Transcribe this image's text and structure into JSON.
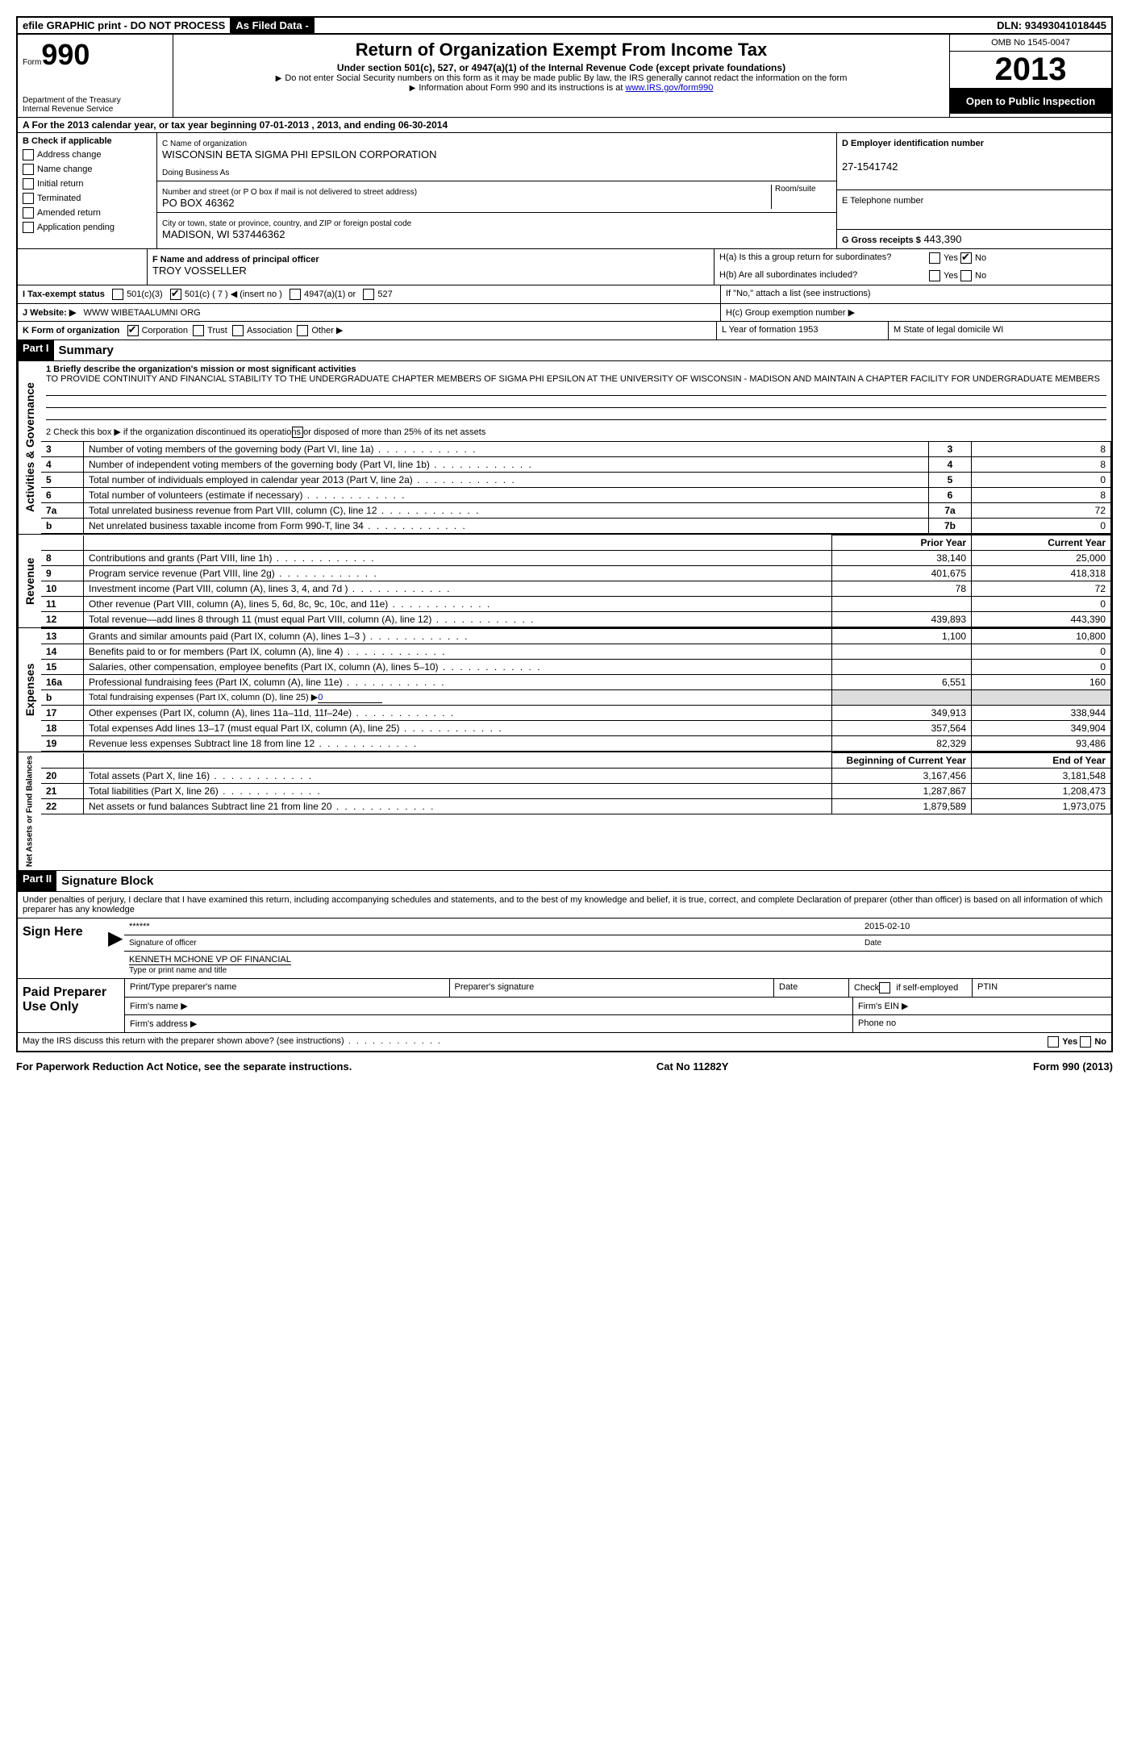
{
  "topbar": {
    "efile": "efile GRAPHIC print - DO NOT PROCESS",
    "asfiled": "As Filed Data -",
    "dln_label": "DLN:",
    "dln": "93493041018445"
  },
  "header": {
    "form_label": "Form",
    "form_no": "990",
    "dept1": "Department of the Treasury",
    "dept2": "Internal Revenue Service",
    "title": "Return of Organization Exempt From Income Tax",
    "sub1": "Under section 501(c), 527, or 4947(a)(1) of the Internal Revenue Code (except private foundations)",
    "sub2": "Do not enter Social Security numbers on this form as it may be made public  By law, the IRS generally cannot redact the information on the form",
    "sub3": "Information about Form 990 and its instructions is at ",
    "link": "www.IRS.gov/form990",
    "omb": "OMB No  1545-0047",
    "year": "2013",
    "open": "Open to Public Inspection"
  },
  "rowA": "A  For the 2013 calendar year, or tax year beginning 07-01-2013     , 2013, and ending 06-30-2014",
  "colB": {
    "label": "B  Check if applicable",
    "items": [
      "Address change",
      "Name change",
      "Initial return",
      "Terminated",
      "Amended return",
      "Application pending"
    ]
  },
  "colC": {
    "name_label": "C Name of organization",
    "name": "WISCONSIN BETA SIGMA PHI EPSILON CORPORATION",
    "dba": "Doing Business As",
    "addr_label": "Number and street (or P O  box if mail is not delivered to street address)",
    "room": "Room/suite",
    "addr": "PO BOX 46362",
    "city_label": "City or town, state or province, country, and ZIP or foreign postal code",
    "city": "MADISON, WI  537446362",
    "officer_label": "F  Name and address of principal officer",
    "officer": "TROY VOSSELLER"
  },
  "colD": {
    "ein_label": "D Employer identification number",
    "ein": "27-1541742",
    "phone_label": "E Telephone number",
    "gross_label": "G Gross receipts $",
    "gross": "443,390"
  },
  "hBox": {
    "ha": "H(a)  Is this a group return for subordinates?",
    "hb": "H(b)  Are all subordinates included?",
    "hb_note": "If \"No,\" attach a list  (see instructions)",
    "hc": "H(c)   Group exemption number ▶",
    "yes": "Yes",
    "no": "No"
  },
  "rowI": {
    "label": "I   Tax-exempt status",
    "opts": [
      "501(c)(3)",
      "501(c) ( 7 ) ◀ (insert no )",
      "4947(a)(1) or",
      "527"
    ]
  },
  "rowJ": {
    "label": "J   Website: ▶",
    "val": "WWW WIBETAALUMNI ORG"
  },
  "rowK": {
    "label": "K Form of organization",
    "opts": [
      "Corporation",
      "Trust",
      "Association",
      "Other ▶"
    ],
    "L": "L Year of formation  1953",
    "M": "M State of legal domicile  WI"
  },
  "part1": {
    "header": "Part I",
    "title": "Summary",
    "line1_label": "1   Briefly describe the organization's mission or most significant activities",
    "mission": "TO PROVIDE CONTINUITY AND FINANCIAL STABILITY TO THE UNDERGRADUATE CHAPTER MEMBERS OF SIGMA PHI EPSILON AT THE UNIVERSITY OF WISCONSIN - MADISON AND MAINTAIN A CHAPTER FACILITY FOR UNDERGRADUATE MEMBERS",
    "line2": "2   Check this box ▶     if the organization discontinued its operations or disposed of more than 25% of its net assets",
    "sideA": "Activities & Governance",
    "sideR": "Revenue",
    "sideE": "Expenses",
    "sideN": "Net Assets or Fund Balances",
    "prior": "Prior Year",
    "current": "Current Year",
    "begin": "Beginning of Current Year",
    "end": "End of Year"
  },
  "gov_rows": [
    {
      "n": "3",
      "d": "Number of voting members of the governing body (Part VI, line 1a)",
      "ln": "3",
      "v": "8"
    },
    {
      "n": "4",
      "d": "Number of independent voting members of the governing body (Part VI, line 1b)",
      "ln": "4",
      "v": "8"
    },
    {
      "n": "5",
      "d": "Total number of individuals employed in calendar year 2013 (Part V, line 2a)",
      "ln": "5",
      "v": "0"
    },
    {
      "n": "6",
      "d": "Total number of volunteers (estimate if necessary)",
      "ln": "6",
      "v": "8"
    },
    {
      "n": "7a",
      "d": "Total unrelated business revenue from Part VIII, column (C), line 12",
      "ln": "7a",
      "v": "72"
    },
    {
      "n": "b",
      "d": "Net unrelated business taxable income from Form 990-T, line 34",
      "ln": "7b",
      "v": "0"
    }
  ],
  "rev_rows": [
    {
      "n": "8",
      "d": "Contributions and grants (Part VIII, line 1h)",
      "p": "38,140",
      "c": "25,000"
    },
    {
      "n": "9",
      "d": "Program service revenue (Part VIII, line 2g)",
      "p": "401,675",
      "c": "418,318"
    },
    {
      "n": "10",
      "d": "Investment income (Part VIII, column (A), lines 3, 4, and 7d )",
      "p": "78",
      "c": "72"
    },
    {
      "n": "11",
      "d": "Other revenue (Part VIII, column (A), lines 5, 6d, 8c, 9c, 10c, and 11e)",
      "p": "",
      "c": "0"
    },
    {
      "n": "12",
      "d": "Total revenue—add lines 8 through 11 (must equal Part VIII, column (A), line 12)",
      "p": "439,893",
      "c": "443,390"
    }
  ],
  "exp_rows": [
    {
      "n": "13",
      "d": "Grants and similar amounts paid (Part IX, column (A), lines 1–3 )",
      "p": "1,100",
      "c": "10,800"
    },
    {
      "n": "14",
      "d": "Benefits paid to or for members (Part IX, column (A), line 4)",
      "p": "",
      "c": "0"
    },
    {
      "n": "15",
      "d": "Salaries, other compensation, employee benefits (Part IX, column (A), lines 5–10)",
      "p": "",
      "c": "0"
    },
    {
      "n": "16a",
      "d": "Professional fundraising fees (Part IX, column (A), line 11e)",
      "p": "6,551",
      "c": "160"
    },
    {
      "n": "b",
      "d": "Total fundraising expenses (Part IX, column (D), line 25) ▶",
      "p": "shade",
      "c": "shade",
      "small": true,
      "zero": "0"
    },
    {
      "n": "17",
      "d": "Other expenses (Part IX, column (A), lines 11a–11d, 11f–24e)",
      "p": "349,913",
      "c": "338,944"
    },
    {
      "n": "18",
      "d": "Total expenses  Add lines 13–17 (must equal Part IX, column (A), line 25)",
      "p": "357,564",
      "c": "349,904"
    },
    {
      "n": "19",
      "d": "Revenue less expenses  Subtract line 18 from line 12",
      "p": "82,329",
      "c": "93,486"
    }
  ],
  "net_rows": [
    {
      "n": "20",
      "d": "Total assets (Part X, line 16)",
      "p": "3,167,456",
      "c": "3,181,548"
    },
    {
      "n": "21",
      "d": "Total liabilities (Part X, line 26)",
      "p": "1,287,867",
      "c": "1,208,473"
    },
    {
      "n": "22",
      "d": "Net assets or fund balances  Subtract line 21 from line 20",
      "p": "1,879,589",
      "c": "1,973,075"
    }
  ],
  "part2": {
    "header": "Part II",
    "title": "Signature Block",
    "perjury": "Under penalties of perjury, I declare that I have examined this return, including accompanying schedules and statements, and to the best of my knowledge and belief, it is true, correct, and complete  Declaration of preparer (other than officer) is based on all information of which preparer has any knowledge",
    "sign_here": "Sign Here",
    "stars": "******",
    "sig_officer": "Signature of officer",
    "date_label": "Date",
    "date": "2015-02-10",
    "name": "KENNETH MCHONE VP OF FINANCIAL",
    "name_label": "Type or print name and title",
    "paid": "Paid Preparer Use Only",
    "prep_name": "Print/Type preparer's name",
    "prep_sig": "Preparer's signature",
    "check": "Check      if self-employed",
    "ptin": "PTIN",
    "firm_name": "Firm's name   ▶",
    "firm_ein": "Firm's EIN ▶",
    "firm_addr": "Firm's address ▶",
    "phone": "Phone no",
    "discuss": "May the IRS discuss this return with the preparer shown above? (see instructions)"
  },
  "footer": {
    "pra": "For Paperwork Reduction Act Notice, see the separate instructions.",
    "cat": "Cat No  11282Y",
    "form": "Form 990 (2013)"
  }
}
